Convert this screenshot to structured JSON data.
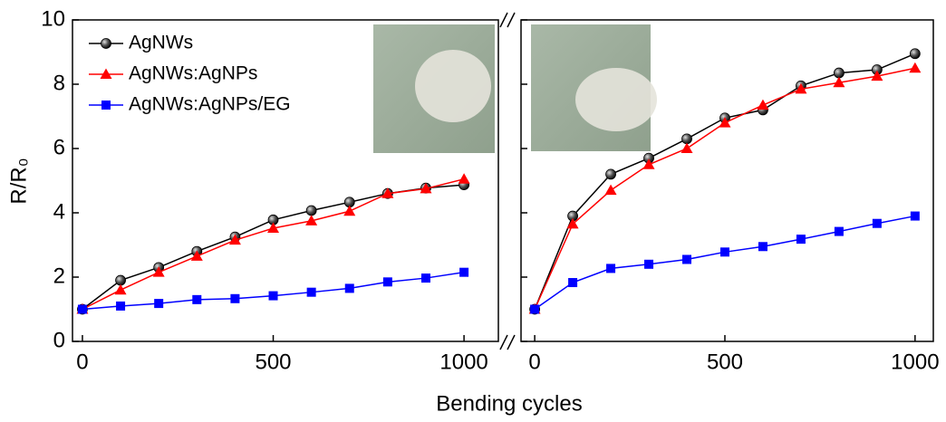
{
  "chart_data": [
    {
      "type": "line",
      "xlabel": "Bending cycles",
      "ylabel": "R/R₀",
      "x": [
        0,
        100,
        200,
        300,
        400,
        500,
        600,
        700,
        800,
        900,
        1000
      ],
      "xlim": [
        -26,
        1090
      ],
      "xticks": [
        0,
        500,
        1000
      ],
      "ylim": [
        0,
        10
      ],
      "yticks": [
        0,
        2,
        4,
        6,
        8,
        10
      ],
      "legend": "upper left",
      "series": [
        {
          "name": "AgNWs",
          "color": "#000000",
          "marker": "circle",
          "values": [
            1,
            1.9,
            2.3,
            2.8,
            3.25,
            3.78,
            4.07,
            4.33,
            4.6,
            4.77,
            4.87
          ]
        },
        {
          "name": "AgNWs:AgNPs",
          "color": "#ff0000",
          "marker": "triangle",
          "values": [
            1,
            1.6,
            2.15,
            2.65,
            3.15,
            3.52,
            3.75,
            4.05,
            4.6,
            4.75,
            5.05
          ]
        },
        {
          "name": "AgNWs:AgNPs/EG",
          "color": "#0000ff",
          "marker": "square",
          "values": [
            1,
            1.1,
            1.18,
            1.3,
            1.33,
            1.42,
            1.53,
            1.65,
            1.85,
            1.97,
            2.15
          ]
        }
      ]
    },
    {
      "type": "line",
      "x": [
        0,
        100,
        200,
        300,
        400,
        500,
        600,
        700,
        800,
        900,
        1000
      ],
      "xlim": [
        -36,
        1048
      ],
      "xticks": [
        0,
        500,
        1000
      ],
      "ylim": [
        0,
        10
      ],
      "yticks": [
        0,
        2,
        4,
        6,
        8,
        10
      ],
      "series": [
        {
          "color": "#000000",
          "marker": "circle",
          "values": [
            1,
            3.9,
            5.2,
            5.7,
            6.3,
            6.95,
            7.2,
            7.95,
            8.35,
            8.45,
            8.95
          ]
        },
        {
          "color": "#ff0000",
          "marker": "triangle",
          "values": [
            1,
            3.65,
            4.7,
            5.5,
            6.0,
            6.8,
            7.35,
            7.85,
            8.05,
            8.25,
            8.5
          ]
        },
        {
          "color": "#0000ff",
          "marker": "square",
          "values": [
            1,
            1.83,
            2.27,
            2.4,
            2.55,
            2.78,
            2.95,
            3.18,
            3.42,
            3.67,
            3.9
          ]
        }
      ]
    }
  ]
}
